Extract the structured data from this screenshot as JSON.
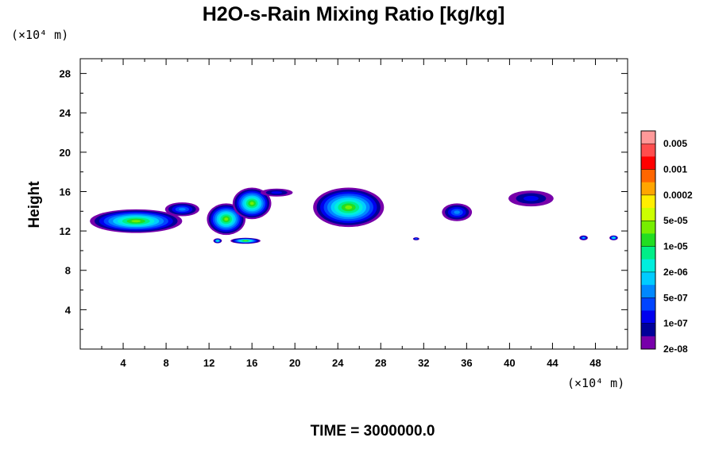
{
  "chart_data": {
    "type": "heatmap",
    "title": "H2O-s-Rain Mixing Ratio [kg/kg]",
    "xlabel": "",
    "ylabel": "Height",
    "x_unit": "(×10⁴ m)",
    "y_unit": "(×10⁴ m)",
    "xlim": [
      0,
      51
    ],
    "ylim": [
      0,
      29.5
    ],
    "x_ticks": [
      "4",
      "8",
      "12",
      "16",
      "20",
      "24",
      "28",
      "32",
      "36",
      "40",
      "44",
      "48"
    ],
    "y_ticks": [
      "4",
      "8",
      "12",
      "16",
      "20",
      "24",
      "28"
    ],
    "time_label": "TIME = 3000000.0",
    "colorbar": {
      "labels": [
        "0.005",
        "0.001",
        "0.0002",
        "5e-05",
        "1e-05",
        "2e-06",
        "5e-07",
        "1e-07",
        "2e-08"
      ],
      "colors": [
        "#ff9999",
        "#ff4d4d",
        "#ff0000",
        "#ff6600",
        "#ffa500",
        "#ffee00",
        "#ccff00",
        "#77ee00",
        "#22dd22",
        "#00ee88",
        "#00eedd",
        "#00ccff",
        "#0088ff",
        "#0044ff",
        "#0000ee",
        "#000099",
        "#7700aa"
      ]
    },
    "regions": [
      {
        "x": 5.2,
        "y": 13.0,
        "rx": 4.3,
        "ry": 1.2,
        "peak": 7
      },
      {
        "x": 9.5,
        "y": 14.2,
        "rx": 1.6,
        "ry": 0.7,
        "peak": 12
      },
      {
        "x": 13.6,
        "y": 13.2,
        "rx": 1.8,
        "ry": 1.6,
        "peak": 7
      },
      {
        "x": 16.0,
        "y": 14.8,
        "rx": 1.8,
        "ry": 1.6,
        "peak": 7
      },
      {
        "x": 18.3,
        "y": 15.9,
        "rx": 1.5,
        "ry": 0.4,
        "peak": 14
      },
      {
        "x": 25.0,
        "y": 14.4,
        "rx": 3.3,
        "ry": 2.0,
        "peak": 7
      },
      {
        "x": 35.1,
        "y": 13.9,
        "rx": 1.4,
        "ry": 0.9,
        "peak": 12
      },
      {
        "x": 42.0,
        "y": 15.3,
        "rx": 2.1,
        "ry": 0.8,
        "peak": 14
      },
      {
        "x": 15.4,
        "y": 11.0,
        "rx": 1.4,
        "ry": 0.3,
        "peak": 7
      },
      {
        "x": 12.8,
        "y": 11.0,
        "rx": 0.4,
        "ry": 0.25,
        "peak": 9
      },
      {
        "x": 31.3,
        "y": 11.2,
        "rx": 0.3,
        "ry": 0.15,
        "peak": 12
      },
      {
        "x": 46.9,
        "y": 11.3,
        "rx": 0.4,
        "ry": 0.25,
        "peak": 11
      },
      {
        "x": 49.7,
        "y": 11.3,
        "rx": 0.4,
        "ry": 0.25,
        "peak": 9
      }
    ]
  }
}
